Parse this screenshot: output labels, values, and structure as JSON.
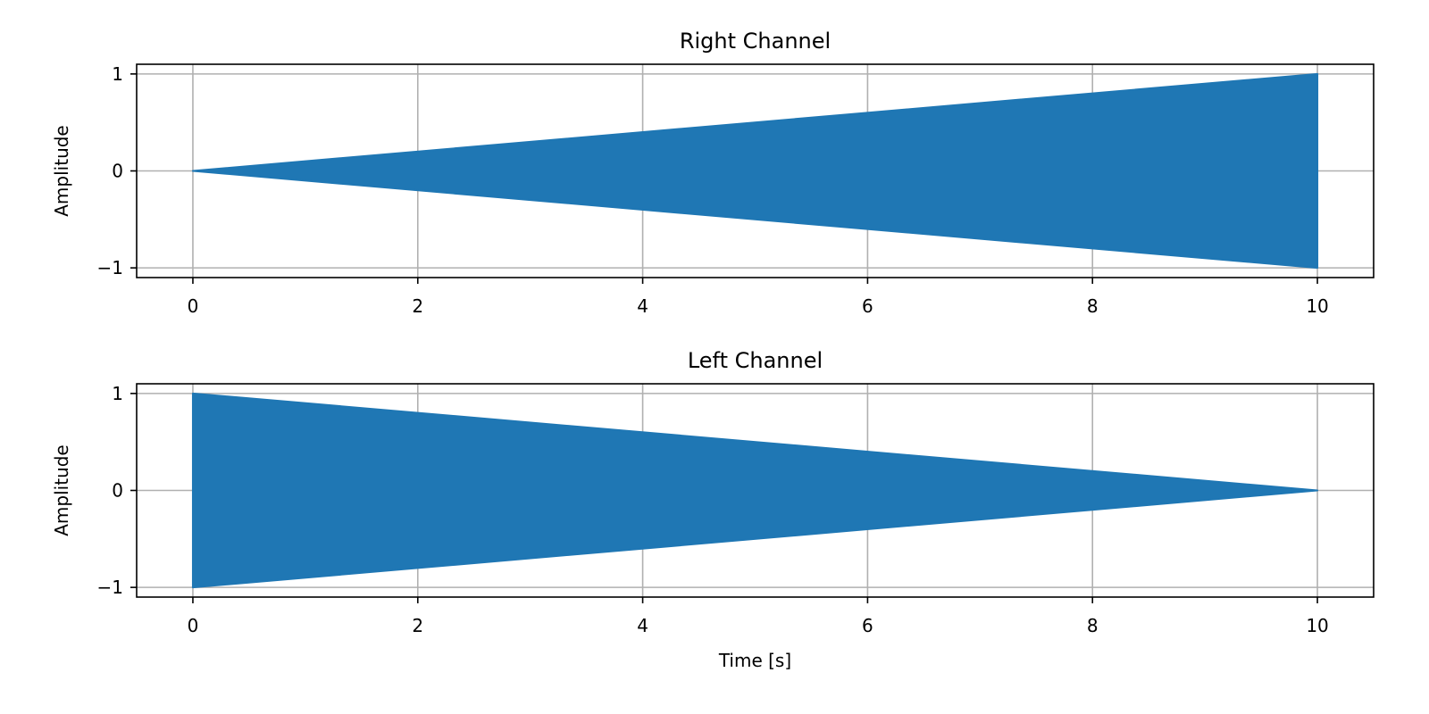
{
  "colors": {
    "series": "#1f77b4",
    "grid": "#b0b0b0",
    "axes": "#000000",
    "background": "#ffffff"
  },
  "chart_data": [
    {
      "type": "area",
      "title": "Right Channel",
      "xlabel": "",
      "ylabel": "Amplitude",
      "xlim": [
        -0.5,
        10.5
      ],
      "ylim": [
        -1.1,
        1.1
      ],
      "xticks": [
        0,
        2,
        4,
        6,
        8,
        10
      ],
      "xtick_labels": [
        "0",
        "2",
        "4",
        "6",
        "8",
        "10"
      ],
      "yticks": [
        -1,
        0,
        1
      ],
      "ytick_labels": [
        "−1",
        "0",
        "1"
      ],
      "grid": true,
      "series": [
        {
          "envelope_x": [
            0,
            10
          ],
          "upper": [
            0,
            1
          ],
          "lower": [
            0,
            -1
          ]
        }
      ]
    },
    {
      "type": "area",
      "title": "Left Channel",
      "xlabel": "Time [s]",
      "ylabel": "Amplitude",
      "xlim": [
        -0.5,
        10.5
      ],
      "ylim": [
        -1.1,
        1.1
      ],
      "xticks": [
        0,
        2,
        4,
        6,
        8,
        10
      ],
      "xtick_labels": [
        "0",
        "2",
        "4",
        "6",
        "8",
        "10"
      ],
      "yticks": [
        -1,
        0,
        1
      ],
      "ytick_labels": [
        "−1",
        "0",
        "1"
      ],
      "grid": true,
      "series": [
        {
          "envelope_x": [
            0,
            10
          ],
          "upper": [
            1,
            0
          ],
          "lower": [
            -1,
            0
          ]
        }
      ]
    }
  ]
}
